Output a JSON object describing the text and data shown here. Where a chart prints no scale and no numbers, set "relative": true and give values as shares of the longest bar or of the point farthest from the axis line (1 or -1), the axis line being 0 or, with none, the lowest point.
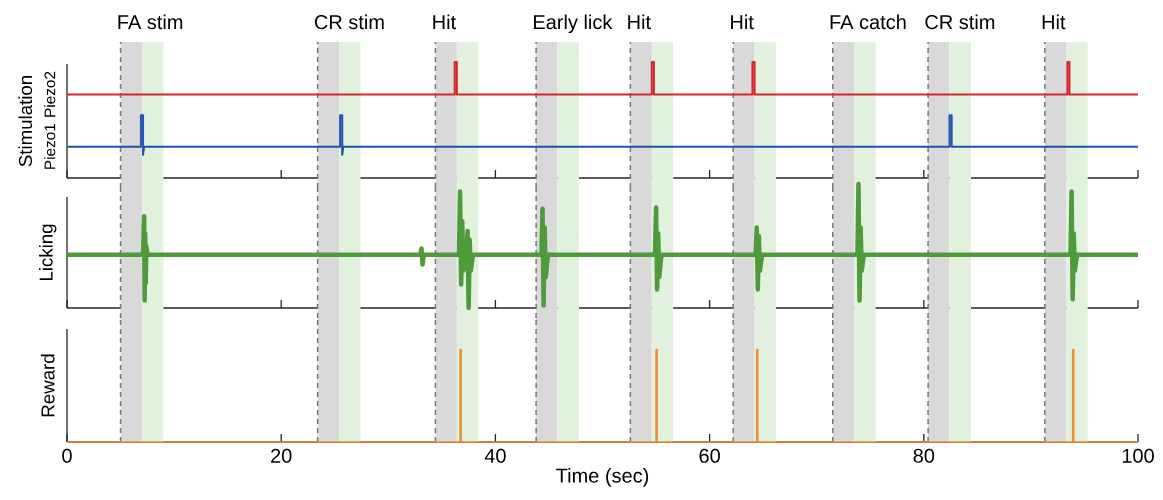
{
  "chart_data": [
    {
      "type": "line",
      "relative": true,
      "ylabel": "Stimulation",
      "xlim": [
        0,
        100
      ],
      "xticks": [
        0,
        20,
        40,
        60,
        80,
        100
      ],
      "tick_labels": false,
      "bands": [
        {
          "axis": "x",
          "from": 5.0,
          "to": 7.0,
          "label": "FA stim",
          "color": "#d9d9d9"
        },
        {
          "axis": "x",
          "from": 23.4,
          "to": 25.4,
          "label": "CR stim",
          "color": "#d9d9d9"
        },
        {
          "axis": "x",
          "from": 34.4,
          "to": 36.4,
          "label": "Hit",
          "color": "#d9d9d9"
        },
        {
          "axis": "x",
          "from": 43.8,
          "to": 45.8,
          "label": "Early lick",
          "color": "#d9d9d9"
        },
        {
          "axis": "x",
          "from": 52.6,
          "to": 54.6,
          "label": "Hit",
          "color": "#d9d9d9"
        },
        {
          "axis": "x",
          "from": 62.2,
          "to": 64.2,
          "label": "Hit",
          "color": "#d9d9d9"
        },
        {
          "axis": "x",
          "from": 71.5,
          "to": 73.5,
          "label": "FA catch",
          "color": "#d9d9d9"
        },
        {
          "axis": "x",
          "from": 80.4,
          "to": 82.4,
          "label": "CR stim",
          "color": "#d9d9d9"
        },
        {
          "axis": "x",
          "from": 91.3,
          "to": 93.3,
          "label": "Hit",
          "color": "#d9d9d9"
        },
        {
          "axis": "x",
          "from": 7.0,
          "to": 9.0,
          "color": "#e2f1dd"
        },
        {
          "axis": "x",
          "from": 25.4,
          "to": 27.4,
          "color": "#e2f1dd"
        },
        {
          "axis": "x",
          "from": 36.4,
          "to": 38.4,
          "color": "#e2f1dd"
        },
        {
          "axis": "x",
          "from": 45.8,
          "to": 47.8,
          "color": "#e2f1dd"
        },
        {
          "axis": "x",
          "from": 54.6,
          "to": 56.6,
          "color": "#e2f1dd"
        },
        {
          "axis": "x",
          "from": 64.2,
          "to": 66.2,
          "color": "#e2f1dd"
        },
        {
          "axis": "x",
          "from": 73.5,
          "to": 75.5,
          "color": "#e2f1dd"
        },
        {
          "axis": "x",
          "from": 82.4,
          "to": 84.4,
          "color": "#e2f1dd"
        },
        {
          "axis": "x",
          "from": 93.3,
          "to": 95.3,
          "color": "#e2f1dd"
        }
      ],
      "ref_lines": [
        {
          "axis": "x",
          "value": 5.0,
          "color": "#777777",
          "line_style": "dashed"
        },
        {
          "axis": "x",
          "value": 23.4,
          "color": "#777777",
          "line_style": "dashed"
        },
        {
          "axis": "x",
          "value": 34.4,
          "color": "#777777",
          "line_style": "dashed"
        },
        {
          "axis": "x",
          "value": 43.8,
          "color": "#777777",
          "line_style": "dashed"
        },
        {
          "axis": "x",
          "value": 52.6,
          "color": "#777777",
          "line_style": "dashed"
        },
        {
          "axis": "x",
          "value": 62.2,
          "color": "#777777",
          "line_style": "dashed"
        },
        {
          "axis": "x",
          "value": 71.5,
          "color": "#777777",
          "line_style": "dashed"
        },
        {
          "axis": "x",
          "value": 80.4,
          "color": "#777777",
          "line_style": "dashed"
        },
        {
          "axis": "x",
          "value": 91.3,
          "color": "#777777",
          "line_style": "dashed"
        }
      ],
      "series": [
        {
          "name": "Piezo2",
          "color": "#d7262b",
          "x": [
            0,
            36.2,
            36.2,
            36.4,
            36.4,
            54.6,
            54.6,
            54.8,
            54.8,
            64.0,
            64.0,
            64.2,
            64.2,
            93.4,
            93.4,
            93.6,
            93.6,
            100
          ],
          "values": [
            0.72,
            0.72,
            1,
            1,
            0.72,
            0.72,
            1,
            1,
            0.72,
            0.72,
            1,
            1,
            0.72,
            0.72,
            1,
            1,
            0.72,
            0.72
          ]
        },
        {
          "name": "Piezo1",
          "color": "#2152b0",
          "x": [
            0,
            6.9,
            6.9,
            7.1,
            7.1,
            7.2,
            25.5,
            25.5,
            25.7,
            25.7,
            25.8,
            82.4,
            82.4,
            82.6,
            82.6,
            100
          ],
          "values": [
            0.27,
            0.27,
            0.54,
            0.54,
            0.2,
            0.27,
            0.27,
            0.54,
            0.54,
            0.2,
            0.27,
            0.27,
            0.54,
            0.54,
            0.27,
            0.27
          ]
        }
      ]
    },
    {
      "type": "line",
      "relative": true,
      "ylabel": "Licking",
      "xlim": [
        0,
        100
      ],
      "xticks": [
        0,
        20,
        40,
        60,
        80,
        100
      ],
      "tick_labels": false,
      "bands": [
        {
          "axis": "x",
          "from": 5.0,
          "to": 7.0,
          "color": "#d9d9d9"
        },
        {
          "axis": "x",
          "from": 23.4,
          "to": 25.4,
          "color": "#d9d9d9"
        },
        {
          "axis": "x",
          "from": 34.4,
          "to": 36.4,
          "color": "#d9d9d9"
        },
        {
          "axis": "x",
          "from": 43.8,
          "to": 45.8,
          "color": "#d9d9d9"
        },
        {
          "axis": "x",
          "from": 52.6,
          "to": 54.6,
          "color": "#d9d9d9"
        },
        {
          "axis": "x",
          "from": 62.2,
          "to": 64.2,
          "color": "#d9d9d9"
        },
        {
          "axis": "x",
          "from": 71.5,
          "to": 73.5,
          "color": "#d9d9d9"
        },
        {
          "axis": "x",
          "from": 80.4,
          "to": 82.4,
          "color": "#d9d9d9"
        },
        {
          "axis": "x",
          "from": 91.3,
          "to": 93.3,
          "color": "#d9d9d9"
        },
        {
          "axis": "x",
          "from": 7.0,
          "to": 9.0,
          "color": "#e2f1dd"
        },
        {
          "axis": "x",
          "from": 25.4,
          "to": 27.4,
          "color": "#e2f1dd"
        },
        {
          "axis": "x",
          "from": 36.4,
          "to": 38.4,
          "color": "#e2f1dd"
        },
        {
          "axis": "x",
          "from": 45.8,
          "to": 47.8,
          "color": "#e2f1dd"
        },
        {
          "axis": "x",
          "from": 54.6,
          "to": 56.6,
          "color": "#e2f1dd"
        },
        {
          "axis": "x",
          "from": 64.2,
          "to": 66.2,
          "color": "#e2f1dd"
        },
        {
          "axis": "x",
          "from": 73.5,
          "to": 75.5,
          "color": "#e2f1dd"
        },
        {
          "axis": "x",
          "from": 82.4,
          "to": 84.4,
          "color": "#e2f1dd"
        },
        {
          "axis": "x",
          "from": 93.3,
          "to": 95.3,
          "color": "#e2f1dd"
        }
      ],
      "ref_lines": [
        {
          "axis": "x",
          "value": 5.0,
          "color": "#777777",
          "line_style": "dashed"
        },
        {
          "axis": "x",
          "value": 23.4,
          "color": "#777777",
          "line_style": "dashed"
        },
        {
          "axis": "x",
          "value": 34.4,
          "color": "#777777",
          "line_style": "dashed"
        },
        {
          "axis": "x",
          "value": 43.8,
          "color": "#777777",
          "line_style": "dashed"
        },
        {
          "axis": "x",
          "value": 52.6,
          "color": "#777777",
          "line_style": "dashed"
        },
        {
          "axis": "x",
          "value": 62.2,
          "color": "#777777",
          "line_style": "dashed"
        },
        {
          "axis": "x",
          "value": 71.5,
          "color": "#777777",
          "line_style": "dashed"
        },
        {
          "axis": "x",
          "value": 80.4,
          "color": "#777777",
          "line_style": "dashed"
        },
        {
          "axis": "x",
          "value": 91.3,
          "color": "#777777",
          "line_style": "dashed"
        }
      ],
      "series": [
        {
          "color": "#4e9a3c",
          "x": [
            0,
            7.1,
            7.2,
            7.25,
            7.3,
            7.35,
            7.4,
            7.5,
            33.0,
            33.1,
            33.2,
            33.3,
            36.6,
            36.7,
            36.8,
            36.9,
            37.0,
            37.3,
            37.4,
            37.5,
            37.6,
            37.7,
            37.9,
            44.3,
            44.4,
            44.5,
            44.6,
            44.7,
            44.9,
            54.9,
            55.0,
            55.1,
            55.2,
            55.3,
            55.5,
            64.3,
            64.4,
            64.5,
            64.6,
            64.7,
            64.9,
            73.8,
            73.9,
            74.0,
            74.1,
            74.2,
            74.4,
            93.7,
            93.8,
            93.9,
            94.0,
            94.1,
            94.3,
            100
          ],
          "values": [
            0.43,
            0.43,
            0.74,
            0.06,
            0.6,
            0.2,
            0.5,
            0.43,
            0.43,
            0.48,
            0.35,
            0.43,
            0.43,
            0.94,
            0.19,
            0.7,
            0.3,
            0.43,
            0.62,
            0.0,
            0.55,
            0.3,
            0.43,
            0.43,
            0.8,
            0.02,
            0.65,
            0.25,
            0.43,
            0.43,
            0.81,
            0.15,
            0.6,
            0.25,
            0.43,
            0.43,
            0.65,
            0.15,
            0.58,
            0.3,
            0.43,
            0.43,
            1.0,
            0.06,
            0.65,
            0.3,
            0.43,
            0.43,
            0.94,
            0.07,
            0.6,
            0.3,
            0.43,
            0.43
          ]
        }
      ]
    },
    {
      "type": "line",
      "relative": true,
      "ylabel": "Reward",
      "xlabel": "Time (sec)",
      "xlim": [
        0,
        100
      ],
      "xticks": [
        0,
        20,
        40,
        60,
        80,
        100
      ],
      "tick_labels": "x",
      "bands": [
        {
          "axis": "x",
          "from": 5.0,
          "to": 7.0,
          "color": "#d9d9d9"
        },
        {
          "axis": "x",
          "from": 23.4,
          "to": 25.4,
          "color": "#d9d9d9"
        },
        {
          "axis": "x",
          "from": 34.4,
          "to": 36.4,
          "color": "#d9d9d9"
        },
        {
          "axis": "x",
          "from": 43.8,
          "to": 45.8,
          "color": "#d9d9d9"
        },
        {
          "axis": "x",
          "from": 52.6,
          "to": 54.6,
          "color": "#d9d9d9"
        },
        {
          "axis": "x",
          "from": 62.2,
          "to": 64.2,
          "color": "#d9d9d9"
        },
        {
          "axis": "x",
          "from": 71.5,
          "to": 73.5,
          "color": "#d9d9d9"
        },
        {
          "axis": "x",
          "from": 80.4,
          "to": 82.4,
          "color": "#d9d9d9"
        },
        {
          "axis": "x",
          "from": 91.3,
          "to": 93.3,
          "color": "#d9d9d9"
        },
        {
          "axis": "x",
          "from": 7.0,
          "to": 9.0,
          "color": "#e2f1dd"
        },
        {
          "axis": "x",
          "from": 25.4,
          "to": 27.4,
          "color": "#e2f1dd"
        },
        {
          "axis": "x",
          "from": 36.4,
          "to": 38.4,
          "color": "#e2f1dd"
        },
        {
          "axis": "x",
          "from": 45.8,
          "to": 47.8,
          "color": "#e2f1dd"
        },
        {
          "axis": "x",
          "from": 54.6,
          "to": 56.6,
          "color": "#e2f1dd"
        },
        {
          "axis": "x",
          "from": 64.2,
          "to": 66.2,
          "color": "#e2f1dd"
        },
        {
          "axis": "x",
          "from": 73.5,
          "to": 75.5,
          "color": "#e2f1dd"
        },
        {
          "axis": "x",
          "from": 82.4,
          "to": 84.4,
          "color": "#e2f1dd"
        },
        {
          "axis": "x",
          "from": 93.3,
          "to": 95.3,
          "color": "#e2f1dd"
        }
      ],
      "ref_lines": [
        {
          "axis": "x",
          "value": 5.0,
          "color": "#777777",
          "line_style": "dashed"
        },
        {
          "axis": "x",
          "value": 23.4,
          "color": "#777777",
          "line_style": "dashed"
        },
        {
          "axis": "x",
          "value": 34.4,
          "color": "#777777",
          "line_style": "dashed"
        },
        {
          "axis": "x",
          "value": 43.8,
          "color": "#777777",
          "line_style": "dashed"
        },
        {
          "axis": "x",
          "value": 52.6,
          "color": "#777777",
          "line_style": "dashed"
        },
        {
          "axis": "x",
          "value": 62.2,
          "color": "#777777",
          "line_style": "dashed"
        },
        {
          "axis": "x",
          "value": 71.5,
          "color": "#777777",
          "line_style": "dashed"
        },
        {
          "axis": "x",
          "value": 80.4,
          "color": "#777777",
          "line_style": "dashed"
        },
        {
          "axis": "x",
          "value": 91.3,
          "color": "#777777",
          "line_style": "dashed"
        }
      ],
      "series": [
        {
          "color": "#ee8f3a",
          "x": [
            0,
            36.7,
            36.7,
            36.8,
            36.8,
            55.0,
            55.0,
            55.1,
            55.1,
            64.4,
            64.4,
            64.5,
            64.5,
            93.9,
            93.9,
            94.0,
            94.0,
            100
          ],
          "values": [
            0,
            0,
            1,
            1,
            0,
            0,
            1,
            1,
            0,
            0,
            1,
            1,
            0,
            0,
            1,
            1,
            0,
            0
          ]
        }
      ]
    }
  ]
}
